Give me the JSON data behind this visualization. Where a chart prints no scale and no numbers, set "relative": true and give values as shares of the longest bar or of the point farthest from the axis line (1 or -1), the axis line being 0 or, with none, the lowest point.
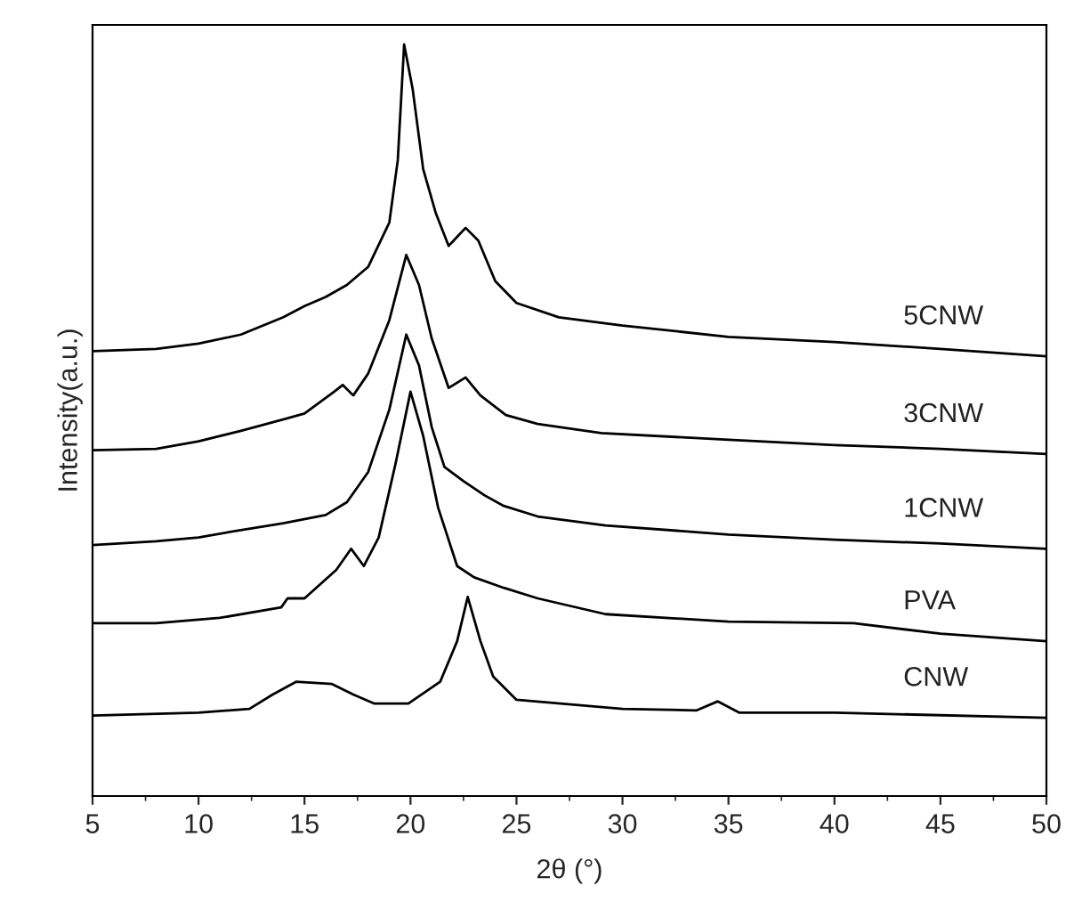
{
  "chart_data": {
    "type": "line",
    "relative": true,
    "xlabel": "2θ (°)",
    "ylabel": "Intensity(a.u.)",
    "xlim": [
      5,
      50
    ],
    "xticks": [
      5,
      10,
      15,
      20,
      25,
      30,
      35,
      40,
      45,
      50
    ],
    "grid": false,
    "legend": false,
    "marker": "none",
    "line_style": "solid",
    "series": [
      {
        "name": "5CNW",
        "color": "#000000",
        "x": [
          5,
          8,
          10,
          12,
          14,
          15,
          16,
          17,
          18,
          19,
          19.4,
          19.7,
          20.1,
          20.6,
          21.2,
          21.8,
          22.6,
          23.2,
          24,
          25,
          27,
          30,
          35,
          40,
          45,
          50
        ],
        "values": [
          0.592,
          0.595,
          0.602,
          0.614,
          0.637,
          0.652,
          0.664,
          0.68,
          0.704,
          0.763,
          0.846,
          1.0,
          0.941,
          0.834,
          0.775,
          0.732,
          0.756,
          0.739,
          0.685,
          0.656,
          0.637,
          0.626,
          0.611,
          0.604,
          0.595,
          0.585
        ]
      },
      {
        "name": "3CNW",
        "color": "#000000",
        "x": [
          5,
          8,
          10,
          12,
          14.1,
          15,
          16.4,
          16.8,
          17.3,
          18,
          19,
          19.8,
          20.4,
          21,
          21.8,
          22.6,
          23.3,
          24.5,
          26,
          29,
          35,
          40,
          45,
          50
        ],
        "values": [
          0.46,
          0.462,
          0.472,
          0.486,
          0.502,
          0.509,
          0.538,
          0.547,
          0.533,
          0.562,
          0.633,
          0.72,
          0.68,
          0.609,
          0.543,
          0.557,
          0.533,
          0.507,
          0.495,
          0.483,
          0.474,
          0.467,
          0.462,
          0.455
        ]
      },
      {
        "name": "1CNW",
        "color": "#000000",
        "x": [
          5,
          8,
          10,
          11.8,
          14,
          16,
          17,
          18,
          19,
          19.8,
          20.4,
          21,
          21.6,
          22.5,
          23.5,
          24.4,
          26,
          29.2,
          35,
          40,
          45,
          50
        ],
        "values": [
          0.334,
          0.339,
          0.344,
          0.353,
          0.363,
          0.374,
          0.391,
          0.431,
          0.514,
          0.614,
          0.573,
          0.491,
          0.438,
          0.419,
          0.4,
          0.386,
          0.372,
          0.36,
          0.348,
          0.341,
          0.336,
          0.329
        ]
      },
      {
        "name": "PVA",
        "color": "#000000",
        "x": [
          5,
          8,
          11,
          13.9,
          14.2,
          15,
          16.5,
          17.2,
          17.8,
          18.5,
          19.3,
          20.0,
          20.6,
          21.3,
          22.2,
          23,
          24.4,
          26,
          29.2,
          35,
          40.9,
          45,
          50
        ],
        "values": [
          0.23,
          0.23,
          0.237,
          0.251,
          0.263,
          0.263,
          0.301,
          0.329,
          0.306,
          0.344,
          0.443,
          0.538,
          0.479,
          0.384,
          0.306,
          0.291,
          0.277,
          0.263,
          0.242,
          0.232,
          0.23,
          0.216,
          0.206
        ]
      },
      {
        "name": "CNW",
        "color": "#000000",
        "x": [
          5,
          10,
          12.4,
          13.5,
          14.6,
          16.3,
          17.3,
          18.3,
          19.9,
          21.4,
          22.2,
          22.7,
          23.3,
          23.9,
          25,
          30,
          33.5,
          34.5,
          35.5,
          40,
          50
        ],
        "values": [
          0.107,
          0.111,
          0.116,
          0.135,
          0.152,
          0.149,
          0.135,
          0.123,
          0.123,
          0.152,
          0.206,
          0.265,
          0.206,
          0.159,
          0.128,
          0.116,
          0.114,
          0.126,
          0.111,
          0.111,
          0.104
        ]
      }
    ]
  }
}
